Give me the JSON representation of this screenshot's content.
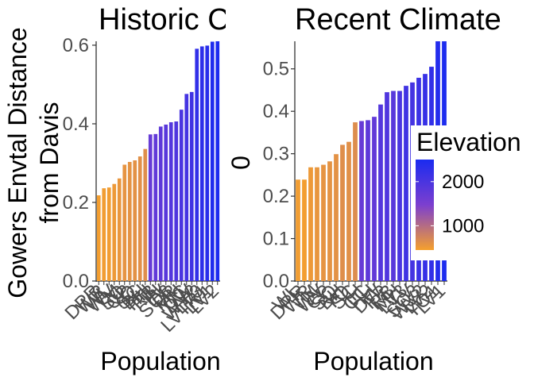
{
  "chart_data": [
    {
      "type": "bar",
      "title": "Historic C",
      "xlabel": "Population",
      "ylabel": [
        "Gowers Envtal Distance",
        "from Davis"
      ],
      "ylim": [
        0,
        0.61
      ],
      "yticks": [
        0.0,
        0.2,
        0.4,
        0.6
      ],
      "ytick_labels": [
        "0.0",
        "0.2",
        "0.4",
        "0.6"
      ],
      "grid": false,
      "categories": [
        "DPR",
        "WR",
        "WL",
        "WV",
        "TM",
        "SQ",
        "CP",
        "YO",
        "SC",
        "BH",
        "HH",
        "RB",
        "IH",
        "LV",
        "SQ3",
        "FR",
        "MH",
        "CC",
        "DW",
        "WV2",
        "LV3",
        "LVTR1",
        "LV1",
        "LV2"
      ],
      "visible_labels": [
        "DPR",
        "WR",
        "WL",
        "WV",
        "TM",
        "SQ",
        "CP",
        "YO",
        "SC",
        "BH",
        "HH",
        "RB",
        "IH",
        "LV",
        "SQ3",
        "FR",
        "MH",
        "CC",
        "DW",
        "WV2",
        "LV3",
        "LVTR1",
        "LV1",
        "LV2"
      ],
      "values": [
        0.218,
        0.236,
        0.238,
        0.247,
        0.261,
        0.296,
        0.303,
        0.307,
        0.317,
        0.336,
        0.373,
        0.374,
        0.393,
        0.398,
        0.404,
        0.406,
        0.436,
        0.476,
        0.481,
        0.591,
        0.597,
        0.599,
        0.609,
        0.615
      ],
      "elevation": [
        470,
        480,
        480,
        520,
        560,
        580,
        590,
        600,
        620,
        640,
        1700,
        1750,
        1800,
        1850,
        1900,
        1950,
        2000,
        2050,
        2100,
        2250,
        2300,
        2350,
        2450,
        2470
      ]
    },
    {
      "type": "bar",
      "title": "Recent Climate",
      "xlabel": "Population",
      "ylabel": [
        "0"
      ],
      "ylim": [
        0,
        0.565
      ],
      "yticks": [
        0.0,
        0.1,
        0.2,
        0.3,
        0.4,
        0.5
      ],
      "ytick_labels": [
        "0.0",
        "0.1",
        "0.2",
        "0.3",
        "0.4",
        "0.5"
      ],
      "grid": false,
      "categories": [
        "WL",
        "DPR",
        "WR",
        "TM",
        "WV",
        "CP",
        "SQ",
        "BH",
        "YO",
        "SC",
        "IH",
        "CC",
        "HH",
        "DW",
        "FR",
        "RB",
        "MH",
        "LV3",
        "LV",
        "SQ3",
        "WV2",
        "LV2",
        "YO1",
        "LV1"
      ],
      "visible_labels": [
        "WL",
        "DPR",
        "WR",
        "TM",
        "WV",
        "CP",
        "SQ",
        "BH",
        "YO",
        "SC",
        "IH",
        "CC",
        "HH",
        "DW",
        "FR",
        "RB",
        "MH",
        "LV3",
        "LV",
        "SQ3",
        "WV2",
        "LV2",
        "YO1",
        "LV1"
      ],
      "values": [
        0.239,
        0.239,
        0.268,
        0.268,
        0.274,
        0.282,
        0.299,
        0.321,
        0.328,
        0.374,
        0.377,
        0.379,
        0.387,
        0.416,
        0.445,
        0.448,
        0.448,
        0.46,
        0.468,
        0.479,
        0.488,
        0.505,
        0.565,
        0.565
      ],
      "elevation": [
        480,
        470,
        520,
        560,
        580,
        590,
        600,
        640,
        620,
        650,
        1700,
        1800,
        1750,
        1900,
        1950,
        1850,
        2000,
        2100,
        2050,
        2150,
        2200,
        2250,
        2400,
        2470
      ]
    }
  ],
  "legend": {
    "title": "Elevation",
    "tick_labels": [
      "2000",
      "1000"
    ],
    "tick_values": [
      2000,
      1000
    ],
    "range": [
      450,
      2500
    ],
    "placement": "right",
    "colors": {
      "low": "#f5a02d",
      "mid": "#7c3fcf",
      "high": "#1a2bf0"
    }
  }
}
